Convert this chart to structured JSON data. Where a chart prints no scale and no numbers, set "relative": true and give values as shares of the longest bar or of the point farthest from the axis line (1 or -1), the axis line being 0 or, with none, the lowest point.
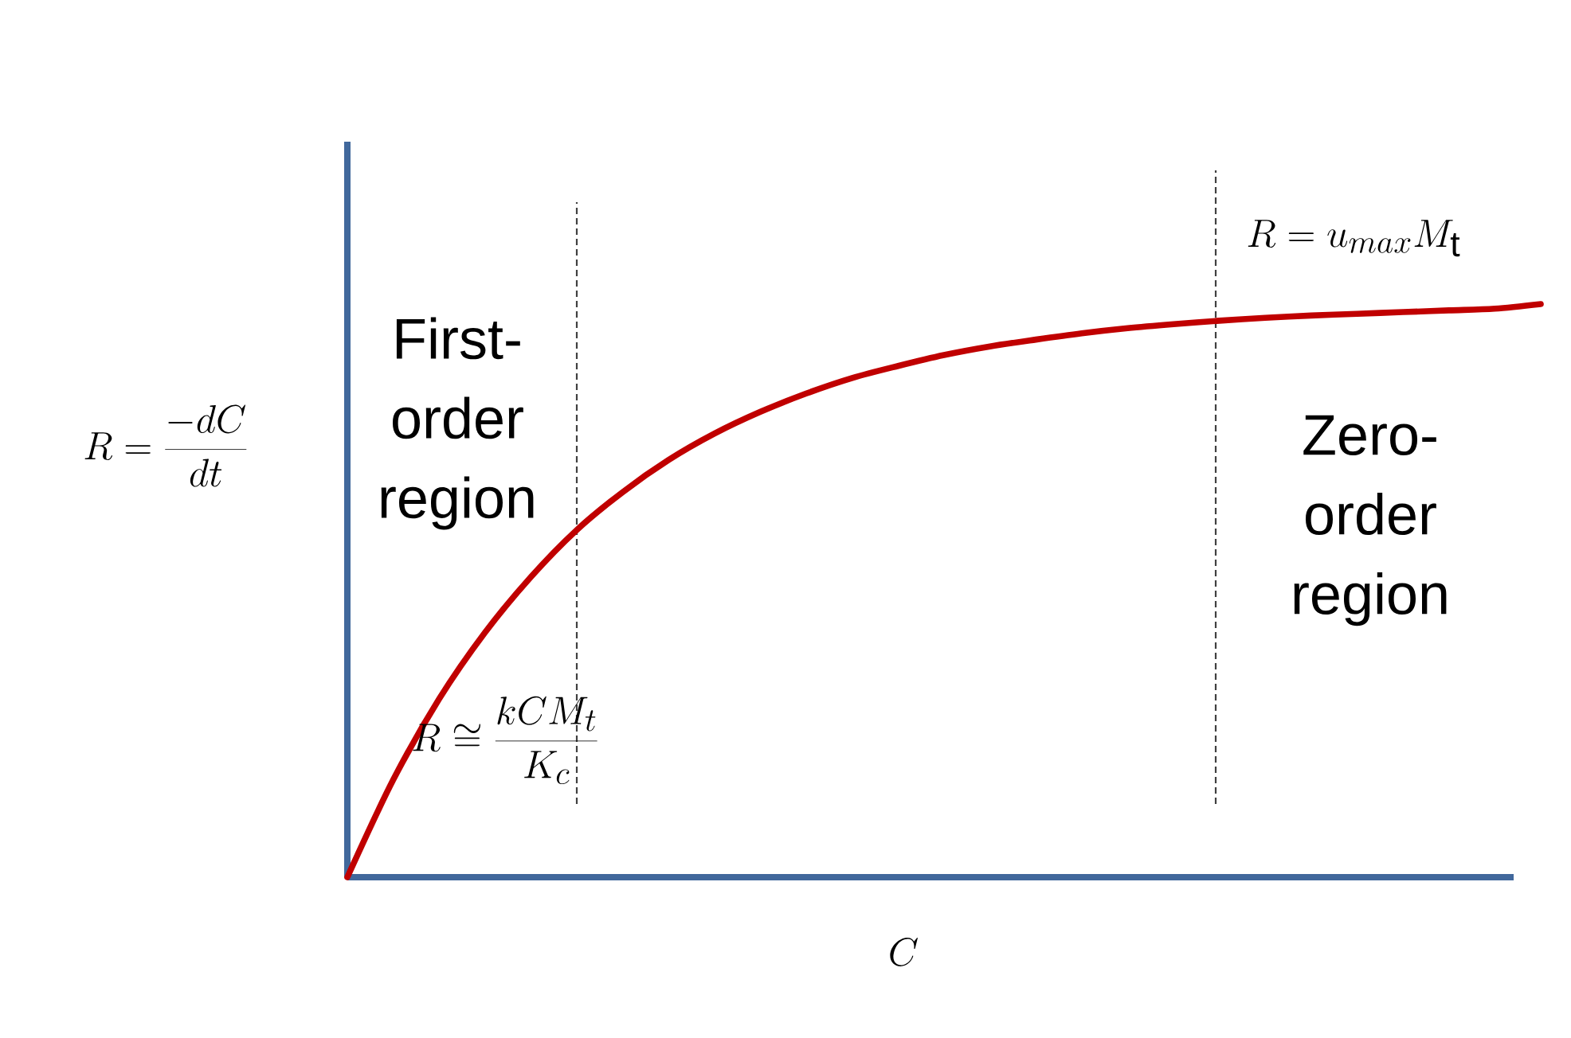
{
  "chart_data": {
    "type": "line",
    "relative": true,
    "xlabel": "C",
    "ylabel": "R = \\frac{-dC}{dt}",
    "categories": [
      null,
      null,
      null,
      null,
      null,
      null,
      null,
      null,
      null,
      null,
      null,
      null,
      null,
      null,
      null,
      null,
      null,
      null,
      null,
      null,
      null,
      null,
      null,
      null,
      null,
      null,
      null
    ],
    "series": [
      {
        "color": "#c00000",
        "values": [
          0,
          0.17,
          0.311,
          0.427,
          0.524,
          0.606,
          0.672,
          0.728,
          0.774,
          0.812,
          0.844,
          0.871,
          0.892,
          0.911,
          0.926,
          0.938,
          0.949,
          0.958,
          0.965,
          0.971,
          0.976,
          0.98,
          0.983,
          0.986,
          0.989,
          0.992,
          1
        ]
      }
    ],
    "annotations": [
      "First-order region",
      "R \\cong \\frac{kCM_t}{K_c}",
      "R = u_{max}M_{\\mathrm{t}}",
      "Zero-order region"
    ]
  }
}
